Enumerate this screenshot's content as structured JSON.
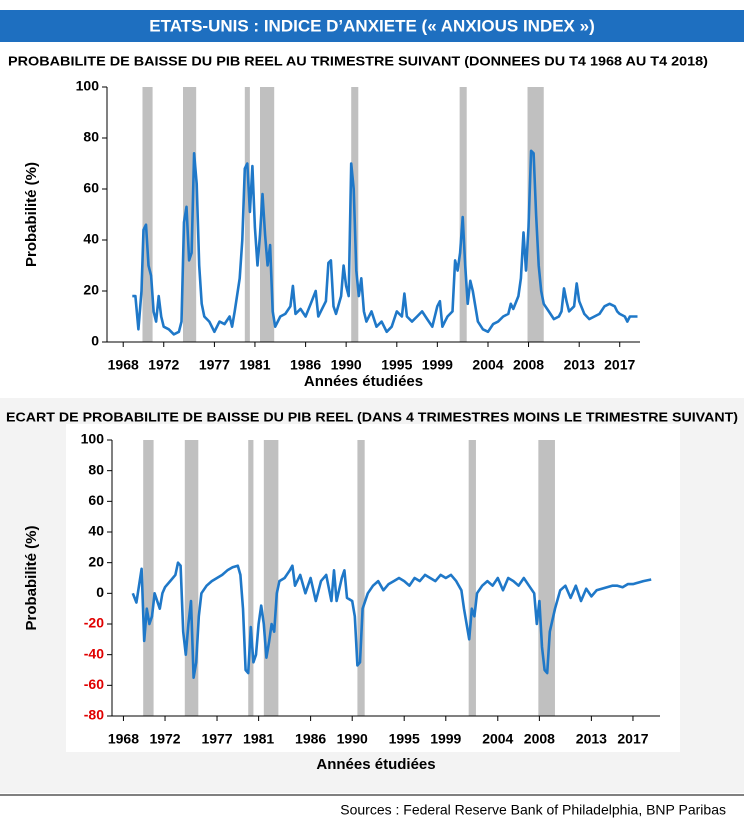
{
  "title": "ETATS-UNIS : INDICE D’ANXIETE («  ANXIOUS INDEX  »)",
  "source": "Sources : Federal Reserve Bank of Philadelphia, BNP Paribas",
  "chart_data": [
    {
      "type": "line",
      "title": "PROBABILITE DE BAISSE DU PIB REEL AU TRIMESTRE SUIVANT (DONNEES  DU  T4  1968 AU T4  2018)",
      "x_label": "Années étudiées",
      "y_label": "Probabilité (%)",
      "xlim": [
        1966.4,
        2019.0
      ],
      "xticks": [
        1968,
        1972,
        1977,
        1981,
        1986,
        1990,
        1995,
        1999,
        2004,
        2008,
        2013,
        2017
      ],
      "ylim": [
        0,
        100
      ],
      "yticks": [
        0,
        20,
        40,
        60,
        80,
        100
      ],
      "shaded_ranges": [
        [
          1969.9,
          1970.9
        ],
        [
          1973.9,
          1975.2
        ],
        [
          1980.0,
          1980.5
        ],
        [
          1981.5,
          1982.9
        ],
        [
          1990.5,
          1991.2
        ],
        [
          2001.2,
          2001.9
        ],
        [
          2007.9,
          2009.5
        ]
      ],
      "shade_color": "#c0c0c0",
      "x": [
        1968.9,
        1969.2,
        1969.5,
        1969.8,
        1970.0,
        1970.25,
        1970.5,
        1970.75,
        1971.0,
        1971.25,
        1971.5,
        1971.75,
        1972,
        1972.5,
        1973,
        1973.5,
        1973.75,
        1974.0,
        1974.25,
        1974.5,
        1974.75,
        1975.0,
        1975.25,
        1975.5,
        1975.75,
        1976,
        1976.5,
        1977,
        1977.5,
        1978,
        1978.5,
        1978.75,
        1979,
        1979.5,
        1979.75,
        1980.0,
        1980.25,
        1980.5,
        1980.75,
        1981.0,
        1981.25,
        1981.5,
        1981.75,
        1982.0,
        1982.25,
        1982.5,
        1982.75,
        1983,
        1983.5,
        1984,
        1984.5,
        1984.75,
        1985,
        1985.5,
        1986,
        1986.5,
        1987,
        1987.25,
        1987.5,
        1988,
        1988.25,
        1988.5,
        1988.75,
        1989,
        1989.5,
        1989.75,
        1990.0,
        1990.25,
        1990.5,
        1990.75,
        1991.0,
        1991.25,
        1991.5,
        1991.75,
        1992,
        1992.5,
        1993,
        1993.5,
        1994,
        1994.5,
        1995,
        1995.5,
        1995.75,
        1996,
        1996.5,
        1997,
        1997.5,
        1998,
        1998.5,
        1999,
        1999.25,
        1999.5,
        1999.75,
        2000,
        2000.5,
        2000.75,
        2001.0,
        2001.25,
        2001.5,
        2001.75,
        2002.0,
        2002.25,
        2002.5,
        2003,
        2003.5,
        2004,
        2004.5,
        2005,
        2005.5,
        2006,
        2006.25,
        2006.5,
        2007,
        2007.25,
        2007.5,
        2007.75,
        2008.0,
        2008.25,
        2008.5,
        2008.75,
        2009.0,
        2009.25,
        2009.5,
        2010,
        2010.5,
        2011,
        2011.25,
        2011.5,
        2011.75,
        2012,
        2012.5,
        2012.75,
        2013,
        2013.5,
        2014,
        2014.5,
        2015,
        2015.5,
        2016,
        2016.5,
        2016.75,
        2017,
        2017.5,
        2017.75,
        2018,
        2018.75
      ],
      "series": [
        {
          "name": "Probabilité",
          "color": "#1f78c8",
          "values": [
            18,
            18,
            5,
            20,
            44,
            46,
            30,
            26,
            12,
            8,
            18,
            10,
            6,
            5,
            3,
            4,
            8,
            47,
            53,
            32,
            35,
            74,
            62,
            30,
            15,
            10,
            8,
            4,
            8,
            7,
            10,
            6,
            12,
            25,
            40,
            68,
            70,
            51,
            69,
            45,
            30,
            42,
            58,
            42,
            30,
            38,
            12,
            6,
            10,
            11,
            14,
            22,
            11,
            13,
            10,
            15,
            20,
            10,
            12,
            16,
            31,
            32,
            14,
            11,
            18,
            30,
            22,
            18,
            70,
            60,
            28,
            18,
            25,
            12,
            8,
            12,
            6,
            8,
            4,
            6,
            12,
            10,
            19,
            10,
            8,
            10,
            12,
            9,
            6,
            14,
            16,
            6,
            8,
            10,
            12,
            32,
            28,
            35,
            49,
            30,
            15,
            24,
            20,
            8,
            5,
            4,
            7,
            8,
            10,
            11,
            15,
            13,
            18,
            25,
            43,
            28,
            45,
            75,
            74,
            50,
            30,
            20,
            15,
            12,
            9,
            10,
            12,
            21,
            16,
            12,
            14,
            23,
            16,
            11,
            9,
            10,
            11,
            14,
            15,
            14,
            12,
            11,
            10,
            8,
            10,
            10
          ]
        }
      ]
    },
    {
      "type": "line",
      "title": "ECART DE PROBABILITE DE BAISSE DU PIB REEL (DANS 4 TRIMESTRES MOINS LE TRIMESTRE SUIVANT)",
      "x_label": "Années étudiées",
      "y_label": "Probabilité (%)",
      "xlim": [
        1966.9,
        2019.6
      ],
      "xticks": [
        1968,
        1972,
        1977,
        1981,
        1986,
        1990,
        1995,
        1999,
        2004,
        2008,
        2013,
        2017
      ],
      "ylim": [
        -80,
        100
      ],
      "yticks": [
        -80,
        -60,
        -40,
        -20,
        0,
        20,
        40,
        60,
        80,
        100
      ],
      "negative_tick_color": "#e00000",
      "shaded_ranges": [
        [
          1969.9,
          1970.9
        ],
        [
          1973.9,
          1975.2
        ],
        [
          1980.0,
          1980.5
        ],
        [
          1981.5,
          1982.9
        ],
        [
          1990.5,
          1991.2
        ],
        [
          2001.2,
          2001.9
        ],
        [
          2007.9,
          2009.5
        ]
      ],
      "shade_color": "#c0c0c0",
      "x": [
        1968.9,
        1969.25,
        1969.5,
        1969.75,
        1970.0,
        1970.25,
        1970.5,
        1970.75,
        1971.0,
        1971.5,
        1971.75,
        1972.0,
        1972.5,
        1973.0,
        1973.25,
        1973.5,
        1973.75,
        1974.0,
        1974.25,
        1974.5,
        1974.75,
        1975.0,
        1975.25,
        1975.5,
        1976,
        1976.5,
        1977,
        1977.5,
        1978,
        1978.5,
        1979,
        1979.25,
        1979.5,
        1979.75,
        1980.0,
        1980.25,
        1980.5,
        1980.75,
        1981.0,
        1981.25,
        1981.5,
        1981.75,
        1982.0,
        1982.25,
        1982.5,
        1982.75,
        1983,
        1983.5,
        1984,
        1984.25,
        1984.5,
        1985,
        1985.5,
        1986,
        1986.5,
        1987,
        1987.5,
        1988,
        1988.25,
        1988.5,
        1989,
        1989.25,
        1989.5,
        1990.0,
        1990.25,
        1990.5,
        1990.75,
        1991.0,
        1991.5,
        1992,
        1992.5,
        1993,
        1993.5,
        1994,
        1994.5,
        1995,
        1995.5,
        1996,
        1996.5,
        1997,
        1997.5,
        1998,
        1998.5,
        1999,
        1999.5,
        2000,
        2000.5,
        2000.75,
        2001.0,
        2001.25,
        2001.5,
        2001.75,
        2002,
        2002.5,
        2003,
        2003.5,
        2004,
        2004.5,
        2005,
        2005.5,
        2006,
        2006.5,
        2007,
        2007.5,
        2007.75,
        2008.0,
        2008.25,
        2008.5,
        2008.75,
        2009.0,
        2009.5,
        2010,
        2010.5,
        2011,
        2011.5,
        2012,
        2012.5,
        2013,
        2013.5,
        2014,
        2014.5,
        2015,
        2015.5,
        2016,
        2016.5,
        2017,
        2017.5,
        2018,
        2018.75
      ],
      "series": [
        {
          "name": "Ecart",
          "color": "#1f78c8",
          "values": [
            0,
            -6,
            5,
            16,
            -31,
            -10,
            -20,
            -15,
            0,
            -10,
            0,
            4,
            8,
            12,
            20,
            18,
            -25,
            -40,
            -20,
            -5,
            -55,
            -45,
            -15,
            0,
            5,
            8,
            10,
            12,
            15,
            17,
            18,
            12,
            -10,
            -50,
            -52,
            -22,
            -45,
            -40,
            -20,
            -8,
            -20,
            -42,
            -32,
            -20,
            -25,
            0,
            8,
            10,
            15,
            18,
            5,
            12,
            0,
            10,
            -5,
            8,
            12,
            -5,
            15,
            -5,
            10,
            15,
            -3,
            -5,
            -15,
            -47,
            -45,
            -10,
            0,
            5,
            8,
            2,
            6,
            8,
            10,
            8,
            5,
            10,
            8,
            12,
            10,
            8,
            12,
            10,
            12,
            8,
            2,
            -10,
            -20,
            -30,
            -10,
            -15,
            0,
            5,
            8,
            5,
            10,
            2,
            10,
            8,
            5,
            10,
            5,
            0,
            -20,
            -5,
            -35,
            -50,
            -52,
            -25,
            -10,
            2,
            5,
            -3,
            5,
            -5,
            3,
            -2,
            2,
            3,
            4,
            5,
            5,
            4,
            6,
            6,
            7,
            8,
            9
          ]
        }
      ]
    }
  ]
}
